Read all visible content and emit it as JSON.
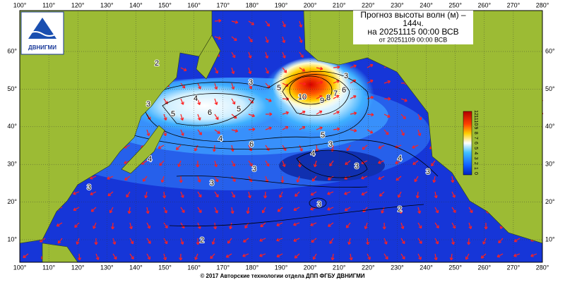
{
  "header": {
    "title": "Прогноз высоты волн (м) –",
    "lead": "144ч.",
    "valid": "на 20251115 00:00 ВСВ",
    "issued": "от 20251109 00:00 ВСВ"
  },
  "logo": {
    "text": "ДВНИГМИ"
  },
  "map": {
    "lon_ticks": [
      {
        "value": 100,
        "label": "100°"
      },
      {
        "value": 110,
        "label": "110°"
      },
      {
        "value": 120,
        "label": "120°"
      },
      {
        "value": 130,
        "label": "130°"
      },
      {
        "value": 140,
        "label": "140°"
      },
      {
        "value": 150,
        "label": "150°"
      },
      {
        "value": 160,
        "label": "160°"
      },
      {
        "value": 170,
        "label": "170°"
      },
      {
        "value": 180,
        "label": "180°"
      },
      {
        "value": 190,
        "label": "190°"
      },
      {
        "value": 200,
        "label": "200°"
      },
      {
        "value": 210,
        "label": "210°"
      },
      {
        "value": 220,
        "label": "220°"
      },
      {
        "value": 230,
        "label": "230°"
      },
      {
        "value": 240,
        "label": "240°"
      },
      {
        "value": 250,
        "label": "250°"
      },
      {
        "value": 260,
        "label": "260°"
      },
      {
        "value": 270,
        "label": "270°"
      },
      {
        "value": 280,
        "label": "280°"
      }
    ],
    "lat_ticks": [
      {
        "value": 10,
        "label": "10°"
      },
      {
        "value": 20,
        "label": "20°"
      },
      {
        "value": 30,
        "label": "30°"
      },
      {
        "value": 40,
        "label": "40°"
      },
      {
        "value": 50,
        "label": "50°"
      },
      {
        "value": 60,
        "label": "60°"
      }
    ],
    "contour_labels": [
      "2",
      "3",
      "4",
      "5",
      "6",
      "5",
      "3",
      "4",
      "6",
      "3",
      "5",
      "10",
      "9",
      "8",
      "7",
      "6",
      "5",
      "3",
      "4",
      "3",
      "4",
      "3",
      "2",
      "3",
      "2",
      "3",
      "3",
      "4",
      "3"
    ]
  },
  "colorbar": {
    "labels": [
      "12",
      "11",
      "10",
      "9",
      "8",
      "7",
      "6",
      "5",
      "4",
      "3",
      "2",
      "1",
      "0"
    ]
  },
  "footer": "© 2017 Авторские технологии отдела ДПП ФГБУ ДВНИГМИ"
}
